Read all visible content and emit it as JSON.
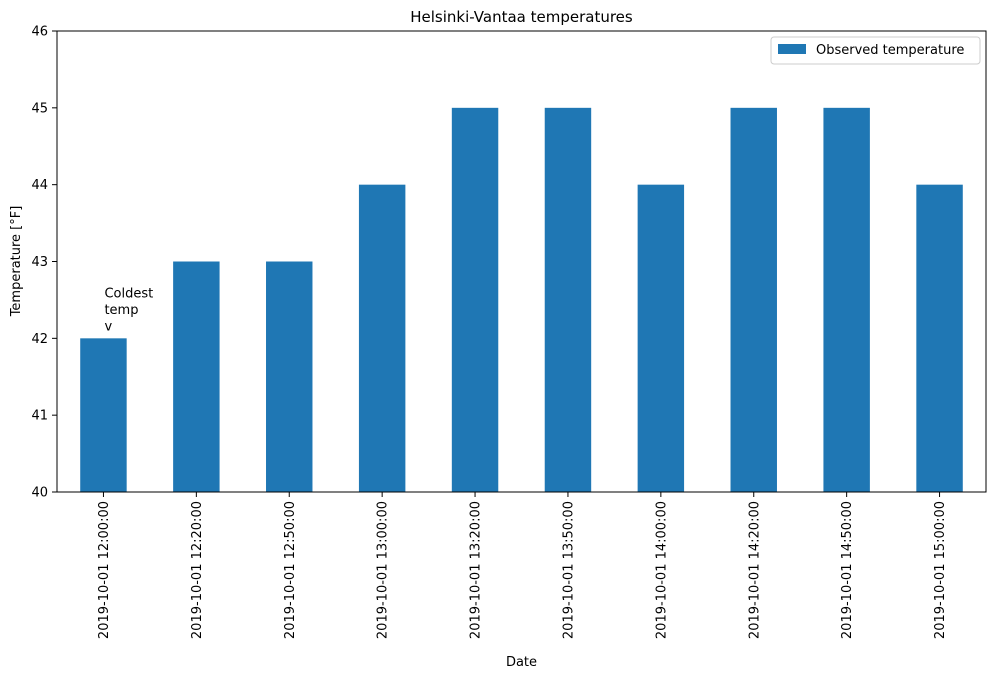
{
  "chart_data": {
    "type": "bar",
    "title": "Helsinki-Vantaa temperatures",
    "xlabel": "Date",
    "ylabel": "Temperature [°F]",
    "categories": [
      "2019-10-01 12:00:00",
      "2019-10-01 12:20:00",
      "2019-10-01 12:50:00",
      "2019-10-01 13:00:00",
      "2019-10-01 13:20:00",
      "2019-10-01 13:50:00",
      "2019-10-01 14:00:00",
      "2019-10-01 14:20:00",
      "2019-10-01 14:50:00",
      "2019-10-01 15:00:00"
    ],
    "series": [
      {
        "name": "Observed temperature",
        "color": "#1f77b4",
        "values": [
          42,
          43,
          43,
          44,
          45,
          45,
          44,
          45,
          45,
          44
        ]
      }
    ],
    "ylim": [
      40,
      46
    ],
    "yticks": [
      "40",
      "41",
      "42",
      "43",
      "44",
      "45",
      "46"
    ],
    "grid": false,
    "legend": {
      "position": "top-right"
    },
    "annotations": [
      {
        "category_index": 0,
        "lines": [
          "Coldest",
          "temp",
          "v"
        ]
      }
    ]
  }
}
